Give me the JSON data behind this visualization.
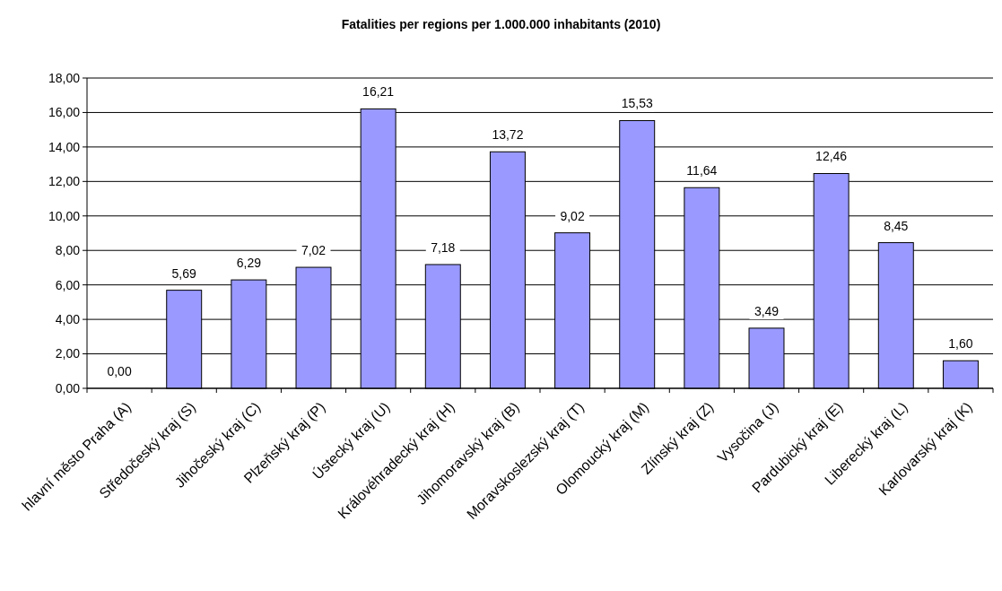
{
  "chart_data": {
    "type": "bar",
    "title": "Fatalities per regions per 1.000.000 inhabitants (2010)",
    "categories": [
      "hlavní město Praha (A)",
      "Středočeský kraj (S)",
      "Jihočeský kraj (C)",
      "Plzeňský kraj (P)",
      "Ústecký kraj (U)",
      "Královéhradecký kraj (H)",
      "Jihomoravský kraj (B)",
      "Moravskoslezský kraj (T)",
      "Olomoucký kraj (M)",
      "Zlínský kraj (Z)",
      "Vysočina (J)",
      "Pardubický kraj (E)",
      "Liberecký kraj (L)",
      "Karlovarský kraj (K)"
    ],
    "values": [
      0,
      5.69,
      6.29,
      7.02,
      16.21,
      7.18,
      13.72,
      9.02,
      15.53,
      11.64,
      3.49,
      12.46,
      8.45,
      1.6
    ],
    "value_labels": [
      "0,00",
      "5,69",
      "6,29",
      "7,02",
      "16,21",
      "7,18",
      "13,72",
      "9,02",
      "15,53",
      "11,64",
      "3,49",
      "12,46",
      "8,45",
      "1,60"
    ],
    "color": "#9999ff",
    "ylim": [
      0,
      18
    ],
    "yticks": [
      {
        "value": 0,
        "label": "0,00"
      },
      {
        "value": 2,
        "label": "2,00"
      },
      {
        "value": 4,
        "label": "4,00"
      },
      {
        "value": 6,
        "label": "6,00"
      },
      {
        "value": 8,
        "label": "8,00"
      },
      {
        "value": 10,
        "label": "10,00"
      },
      {
        "value": 12,
        "label": "12,00"
      },
      {
        "value": 14,
        "label": "14,00"
      },
      {
        "value": 16,
        "label": "16,00"
      },
      {
        "value": 18,
        "label": "18,00"
      }
    ],
    "grid": "y"
  }
}
